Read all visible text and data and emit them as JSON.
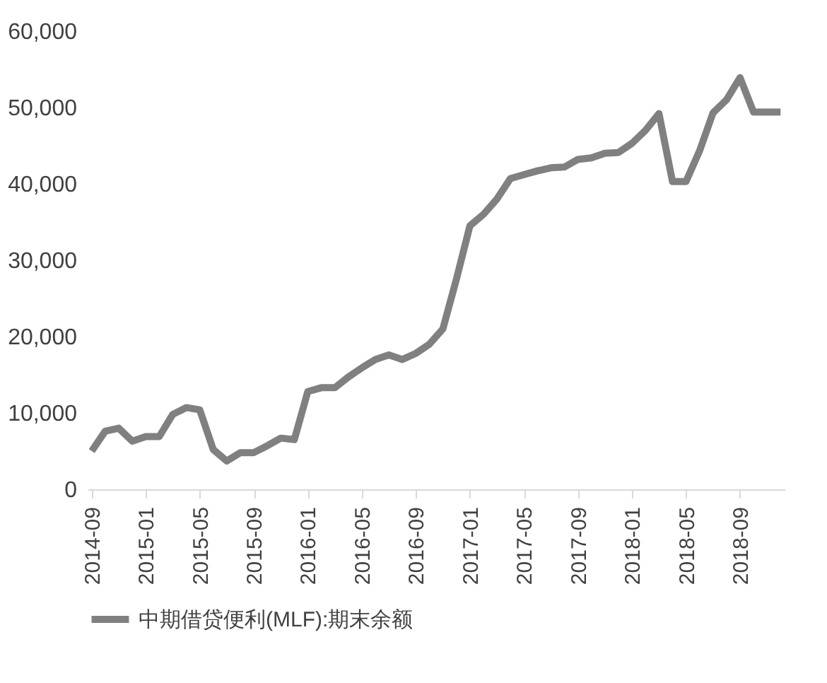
{
  "chart_data": {
    "type": "line",
    "categories": [
      "2014-09",
      null,
      null,
      null,
      "2015-01",
      null,
      null,
      null,
      "2015-05",
      null,
      null,
      null,
      "2015-09",
      null,
      null,
      null,
      "2016-01",
      null,
      null,
      null,
      "2016-05",
      null,
      null,
      null,
      "2016-09",
      null,
      null,
      null,
      "2017-01",
      null,
      null,
      null,
      "2017-05",
      null,
      null,
      null,
      "2017-09",
      null,
      null,
      null,
      "2018-01",
      null,
      null,
      null,
      "2018-05",
      null,
      null,
      null,
      "2018-09",
      null,
      null,
      null
    ],
    "series": [
      {
        "name": "中期借贷便利(MLF):期末余额",
        "color": "#808080",
        "values": [
          5000,
          7600,
          8000,
          6300,
          6900,
          6900,
          9800,
          10700,
          10400,
          5200,
          3700,
          4800,
          4800,
          5700,
          6700,
          6500,
          12800,
          13300,
          13300,
          14700,
          15900,
          17000,
          17600,
          17000,
          17800,
          19000,
          21000,
          27500,
          34500,
          36000,
          38000,
          40700,
          41200,
          41700,
          42100,
          42200,
          43200,
          43400,
          44000,
          44100,
          45300,
          47000,
          49200,
          40300,
          40300,
          44300,
          49300,
          51000,
          53900,
          49400,
          49400,
          49400
        ]
      }
    ],
    "ylim": [
      0,
      60000
    ],
    "yticks": [
      0,
      {
        "value": 10000,
        "label": "10,000"
      },
      {
        "value": 20000,
        "label": "20,000"
      },
      {
        "value": 30000,
        "label": "30,000"
      },
      {
        "value": 40000,
        "label": "40,000"
      },
      {
        "value": 50000,
        "label": "50,000"
      },
      {
        "value": 60000,
        "label": "60,000"
      }
    ],
    "grid": false,
    "legend": "bottom",
    "line_style": "solid",
    "marker": "none"
  }
}
